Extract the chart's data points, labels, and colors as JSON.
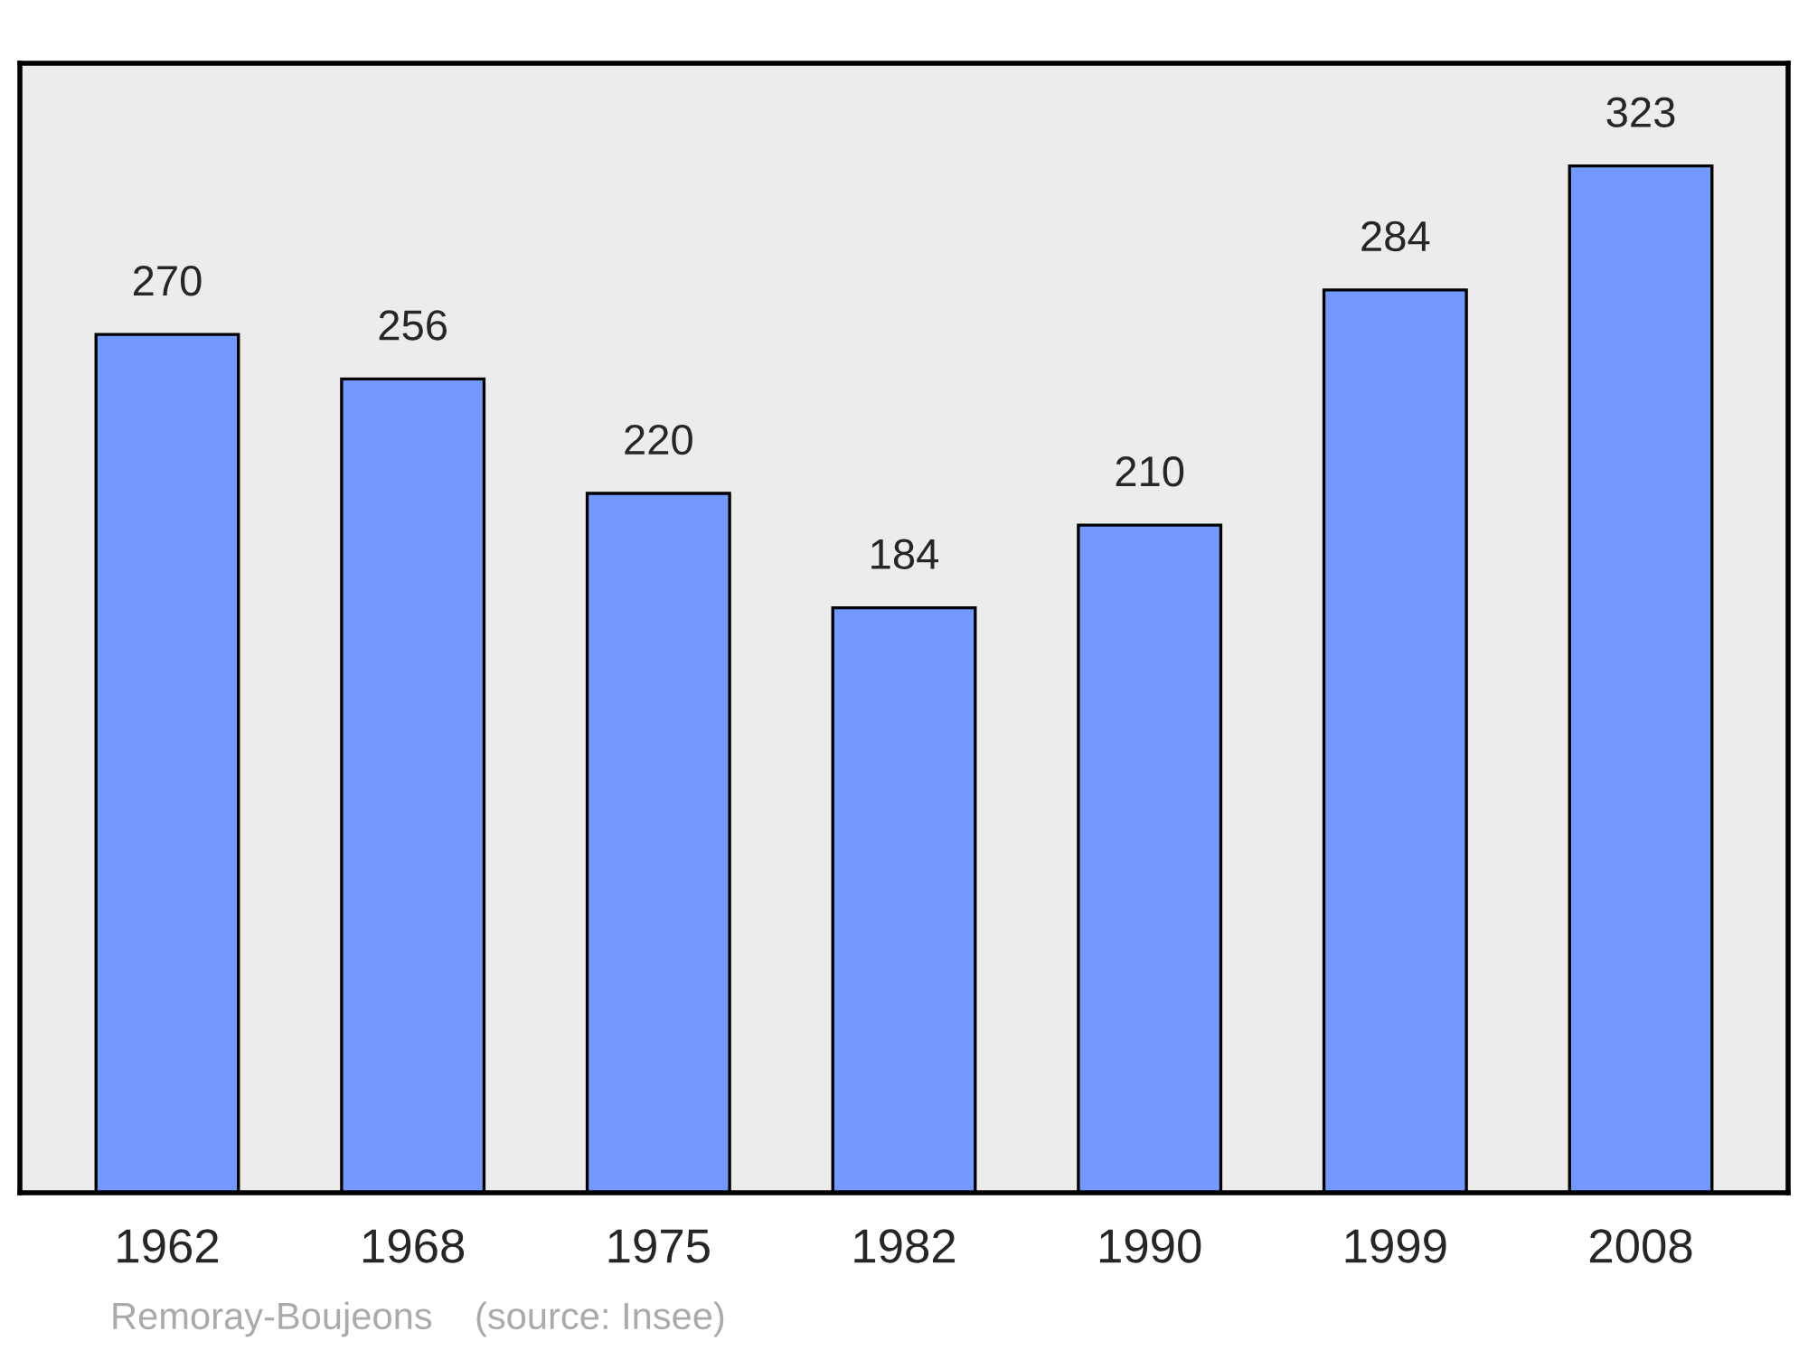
{
  "chart_data": {
    "type": "bar",
    "categories": [
      "1962",
      "1968",
      "1975",
      "1982",
      "1990",
      "1999",
      "2008"
    ],
    "values": [
      270,
      256,
      220,
      184,
      210,
      284,
      323
    ],
    "color": "#7399ff",
    "data_labels": true,
    "tick_labels": "x",
    "grid": false,
    "annotations": [
      "Remoray-Boujeons    (source: Insee)"
    ]
  }
}
